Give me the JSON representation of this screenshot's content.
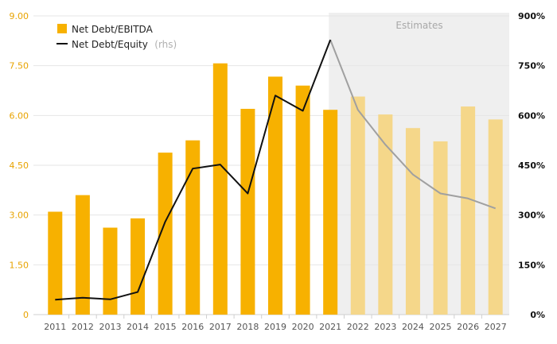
{
  "chart_data": {
    "type": "bar",
    "categories": [
      "2011",
      "2012",
      "2013",
      "2014",
      "2015",
      "2016",
      "2017",
      "2018",
      "2019",
      "2020",
      "2021",
      "2022",
      "2023",
      "2024",
      "2025",
      "2026",
      "2027"
    ],
    "series": [
      {
        "name": "Net Debt/EBITDA",
        "axis": "left",
        "type": "bar",
        "color": "#f7b100",
        "values": [
          3.1,
          3.6,
          2.62,
          2.9,
          4.88,
          5.25,
          7.57,
          6.2,
          7.17,
          6.9,
          6.17,
          6.57,
          6.03,
          5.62,
          5.22,
          6.27,
          5.88
        ]
      },
      {
        "name": "Net Debt/Equity",
        "name_suffix": "(rhs)",
        "axis": "right",
        "type": "line",
        "color": "#111111",
        "estimate_color": "#a0a0a0",
        "values": [
          45,
          51,
          46,
          68,
          280,
          440,
          452,
          365,
          660,
          614,
          828,
          617,
          512,
          422,
          365,
          350,
          320
        ]
      }
    ],
    "estimate_start_index": 11,
    "estimate_bar_color": "#f5d78a",
    "estimate_shading_color": "#efefef",
    "estimates_label": "Estimates",
    "y_left": {
      "lim": [
        0,
        9
      ],
      "ticks": [
        0,
        1.5,
        3,
        4.5,
        6,
        7.5,
        9
      ],
      "tick_labels": [
        "0",
        "1.50",
        "3.00",
        "4.50",
        "6.00",
        "7.50",
        "9.00"
      ],
      "color": "#e8a300"
    },
    "y_right": {
      "lim": [
        0,
        900
      ],
      "ticks": [
        0,
        150,
        300,
        450,
        600,
        750,
        900
      ],
      "tick_labels": [
        "0%",
        "150%",
        "300%",
        "450%",
        "600%",
        "750%",
        "900%"
      ]
    },
    "title": "",
    "xlabel": "",
    "grid": true,
    "legend_position": "top-left"
  }
}
